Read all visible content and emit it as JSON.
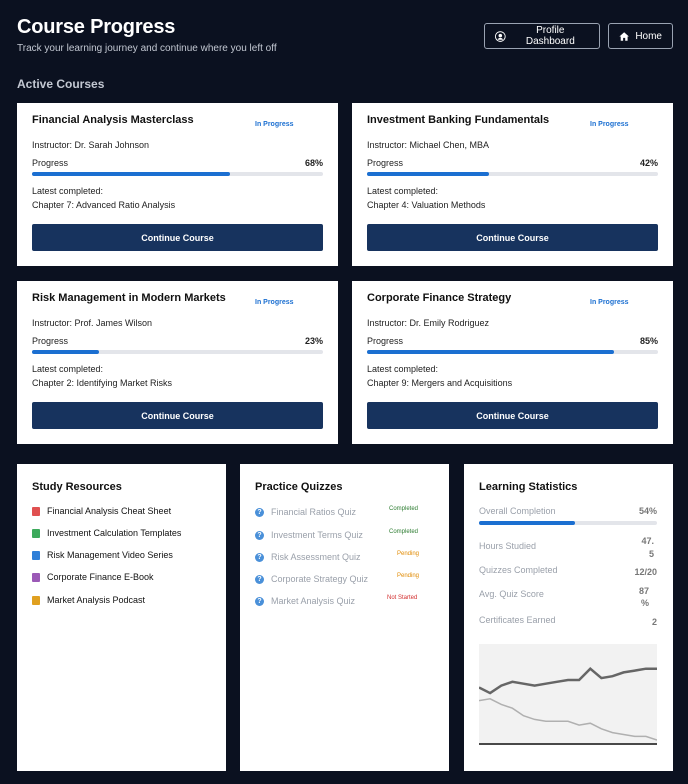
{
  "header": {
    "title": "Course Progress",
    "subtitle": "Track your learning journey and continue where you left off",
    "profile_button": "Profile Dashboard",
    "home_button": "Home"
  },
  "active_section_title": "Active Courses",
  "courses": [
    {
      "title": "Financial Analysis Masterclass",
      "status": "In Progress",
      "instructor": "Instructor: Dr. Sarah Johnson",
      "progress_label": "Progress",
      "progress_text": "68%",
      "progress": 68,
      "latest_label": "Latest completed:",
      "latest": "Chapter 7: Advanced Ratio Analysis",
      "button": "Continue Course"
    },
    {
      "title": "Investment Banking Fundamentals",
      "status": "In Progress",
      "instructor": "Instructor: Michael Chen, MBA",
      "progress_label": "Progress",
      "progress_text": "42%",
      "progress": 42,
      "latest_label": "Latest completed:",
      "latest": "Chapter 4: Valuation Methods",
      "button": "Continue Course"
    },
    {
      "title": "Risk Management in Modern Markets",
      "status": "In Progress",
      "instructor": "Instructor: Prof. James Wilson",
      "progress_label": "Progress",
      "progress_text": "23%",
      "progress": 23,
      "latest_label": "Latest completed:",
      "latest": "Chapter 2: Identifying Market Risks",
      "button": "Continue Course"
    },
    {
      "title": "Corporate Finance Strategy",
      "status": "In Progress",
      "instructor": "Instructor: Dr. Emily Rodriguez",
      "progress_label": "Progress",
      "progress_text": "85%",
      "progress": 85,
      "latest_label": "Latest completed:",
      "latest": "Chapter 9: Mergers and Acquisitions",
      "button": "Continue Course"
    }
  ],
  "resources": {
    "title": "Study Resources",
    "items": [
      {
        "label": "Financial Analysis Cheat Sheet",
        "color": "#e05050"
      },
      {
        "label": "Investment Calculation Templates",
        "color": "#3daa5c"
      },
      {
        "label": "Risk Management Video Series",
        "color": "#2f7fd8"
      },
      {
        "label": "Corporate Finance E-Book",
        "color": "#9b59b6"
      },
      {
        "label": "Market Analysis Podcast",
        "color": "#e0a020"
      }
    ]
  },
  "quizzes": {
    "title": "Practice Quizzes",
    "items": [
      {
        "label": "Financial Ratios Quiz",
        "status": "Completed",
        "color": "#2e7d32"
      },
      {
        "label": "Investment Terms Quiz",
        "status": "Completed",
        "color": "#2e7d32"
      },
      {
        "label": "Risk Assessment Quiz",
        "status": "Pending",
        "color": "#e08a00"
      },
      {
        "label": "Corporate Strategy Quiz",
        "status": "Pending",
        "color": "#e08a00"
      },
      {
        "label": "Market Analysis Quiz",
        "status": "Not Started",
        "color": "#d32f2f"
      }
    ]
  },
  "stats": {
    "title": "Learning Statistics",
    "overall_label": "Overall Completion",
    "overall_text": "54%",
    "overall": 54,
    "rows": [
      {
        "label": "Hours Studied",
        "value": "47.\n5"
      },
      {
        "label": "Quizzes Completed",
        "value": "12/20"
      },
      {
        "label": "Avg. Quiz Score",
        "value": "87\n%"
      },
      {
        "label": "Certificates Earned",
        "value": "2"
      }
    ]
  },
  "chart_data": {
    "type": "line",
    "title": "",
    "xlabel": "",
    "ylabel": "",
    "ylim": [
      0,
      100
    ],
    "grid": false,
    "x": [
      1,
      2,
      3,
      4,
      5,
      6,
      7,
      8,
      9,
      10,
      11,
      12,
      13,
      14,
      15,
      16,
      17
    ],
    "series": [
      {
        "values": [
          58,
          52,
          60,
          64,
          62,
          60,
          62,
          64,
          66,
          66,
          78,
          68,
          70,
          74,
          76,
          78,
          78
        ],
        "color": "#666666"
      },
      {
        "values": [
          44,
          46,
          40,
          36,
          28,
          24,
          22,
          22,
          22,
          18,
          20,
          14,
          10,
          8,
          6,
          6,
          2
        ],
        "color": "#b0b0b0"
      }
    ]
  }
}
